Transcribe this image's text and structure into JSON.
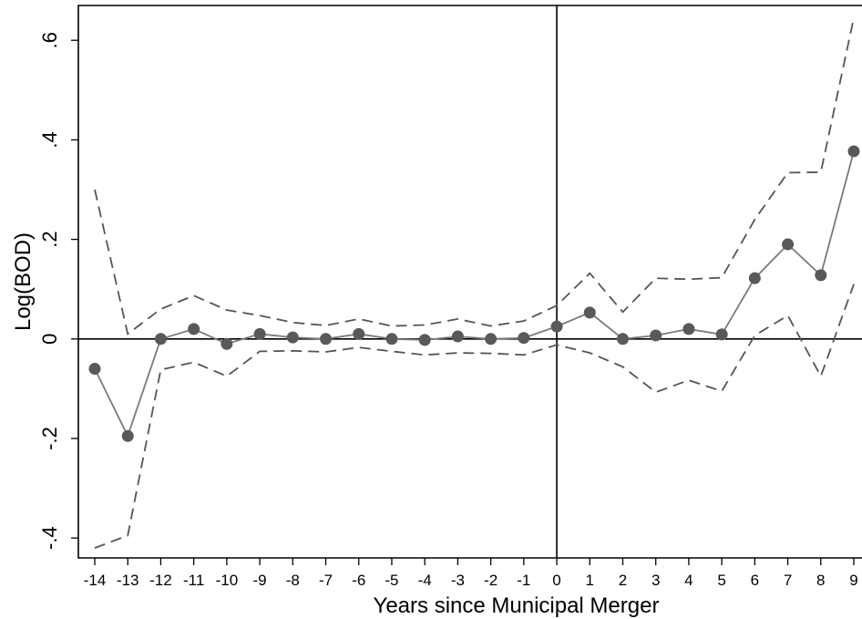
{
  "chart_data": {
    "type": "line",
    "xlabel": "Years since Municipal Merger",
    "ylabel": "Log(BOD)",
    "x": [
      -14,
      -13,
      -12,
      -11,
      -10,
      -9,
      -8,
      -7,
      -6,
      -5,
      -4,
      -3,
      -2,
      -1,
      0,
      1,
      2,
      3,
      4,
      5,
      6,
      7,
      8,
      9
    ],
    "xlim": [
      -14,
      9
    ],
    "ylim": [
      -0.44,
      0.67
    ],
    "x_ticks": [
      "-14",
      "-13",
      "-12",
      "-11",
      "-10",
      "-9",
      "-8",
      "-7",
      "-6",
      "-5",
      "-4",
      "-3",
      "-2",
      "-1",
      "0",
      "1",
      "2",
      "3",
      "4",
      "5",
      "6",
      "7",
      "8",
      "9"
    ],
    "y_ticks": [
      {
        "value": -0.4,
        "label": "-.4"
      },
      {
        "value": -0.2,
        "label": "-.2"
      },
      {
        "value": 0,
        "label": "0"
      },
      {
        "value": 0.2,
        "label": ".2"
      },
      {
        "value": 0.4,
        "label": ".4"
      },
      {
        "value": 0.6,
        "label": ".6"
      }
    ],
    "reference_lines": {
      "x": 0,
      "y": 0
    },
    "grid": false,
    "series": [
      {
        "role": "estimate",
        "style": "solid-with-markers",
        "color": "#7a7a7a",
        "marker_color": "#595959",
        "values": [
          -0.06,
          -0.195,
          0.0,
          0.02,
          -0.01,
          0.01,
          0.003,
          0.0,
          0.01,
          0.0,
          -0.002,
          0.005,
          0.0,
          0.002,
          0.025,
          0.053,
          0.0,
          0.007,
          0.02,
          0.009,
          0.122,
          0.19,
          0.128,
          0.377
        ]
      },
      {
        "role": "upper-ci",
        "style": "dashed",
        "color": "#555555",
        "values": [
          0.3,
          0.01,
          0.06,
          0.087,
          0.058,
          0.047,
          0.033,
          0.027,
          0.04,
          0.026,
          0.028,
          0.04,
          0.026,
          0.036,
          0.067,
          0.132,
          0.054,
          0.122,
          0.12,
          0.123,
          0.24,
          0.334,
          0.335,
          0.645
        ]
      },
      {
        "role": "lower-ci",
        "style": "dashed",
        "color": "#555555",
        "values": [
          -0.42,
          -0.395,
          -0.062,
          -0.047,
          -0.075,
          -0.025,
          -0.024,
          -0.026,
          -0.017,
          -0.025,
          -0.032,
          -0.028,
          -0.029,
          -0.032,
          -0.012,
          -0.028,
          -0.056,
          -0.107,
          -0.083,
          -0.105,
          0.007,
          0.047,
          -0.075,
          0.11
        ]
      }
    ]
  }
}
